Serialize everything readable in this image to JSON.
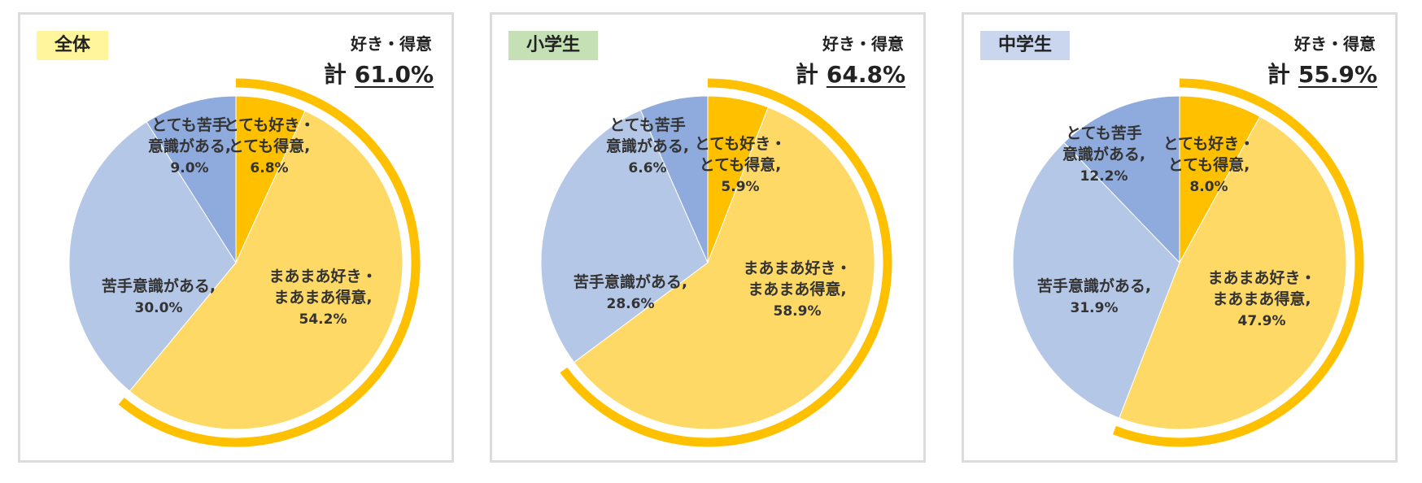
{
  "chart_data": [
    {
      "type": "pie",
      "tag": "全体",
      "tag_color": "#fff59d",
      "positive_label": "好き・得意",
      "total_prefix": "計",
      "total_value": "61.0%",
      "slices": [
        {
          "label": [
            "とても好き・",
            "とても得意,"
          ],
          "value": 6.8,
          "value_label": "6.8%",
          "color": "#ffc000"
        },
        {
          "label": [
            "まあまあ好き・",
            "まあまあ得意,"
          ],
          "value": 54.2,
          "value_label": "54.2%",
          "color": "#ffd966"
        },
        {
          "label": [
            "苦手意識がある,"
          ],
          "value": 30.0,
          "value_label": "30.0%",
          "color": "#b4c7e7"
        },
        {
          "label": [
            "とても苦手",
            "意識がある,"
          ],
          "value": 9.0,
          "value_label": "9.0%",
          "color": "#8faadc"
        }
      ]
    },
    {
      "type": "pie",
      "tag": "小学生",
      "tag_color": "#c5e0b4",
      "positive_label": "好き・得意",
      "total_prefix": "計",
      "total_value": "64.8%",
      "slices": [
        {
          "label": [
            "とても好き・",
            "とても得意,"
          ],
          "value": 5.9,
          "value_label": "5.9%",
          "color": "#ffc000"
        },
        {
          "label": [
            "まあまあ好き・",
            "まあまあ得意,"
          ],
          "value": 58.9,
          "value_label": "58.9%",
          "color": "#ffd966"
        },
        {
          "label": [
            "苦手意識がある,"
          ],
          "value": 28.6,
          "value_label": "28.6%",
          "color": "#b4c7e7"
        },
        {
          "label": [
            "とても苦手",
            "意識がある,"
          ],
          "value": 6.6,
          "value_label": "6.6%",
          "color": "#8faadc"
        }
      ]
    },
    {
      "type": "pie",
      "tag": "中学生",
      "tag_color": "#c9d6ee",
      "positive_label": "好き・得意",
      "total_prefix": "計",
      "total_value": "55.9%",
      "slices": [
        {
          "label": [
            "とても好き・",
            "とても得意,"
          ],
          "value": 8.0,
          "value_label": "8.0%",
          "color": "#ffc000"
        },
        {
          "label": [
            "まあまあ好き・",
            "まあまあ得意,"
          ],
          "value": 47.9,
          "value_label": "47.9%",
          "color": "#ffd966"
        },
        {
          "label": [
            "苦手意識がある,"
          ],
          "value": 31.9,
          "value_label": "31.9%",
          "color": "#b4c7e7"
        },
        {
          "label": [
            "とても苦手",
            "意識がある,"
          ],
          "value": 12.2,
          "value_label": "12.2%",
          "color": "#8faadc"
        }
      ]
    }
  ],
  "highlight_arc_color": "#ffc000"
}
